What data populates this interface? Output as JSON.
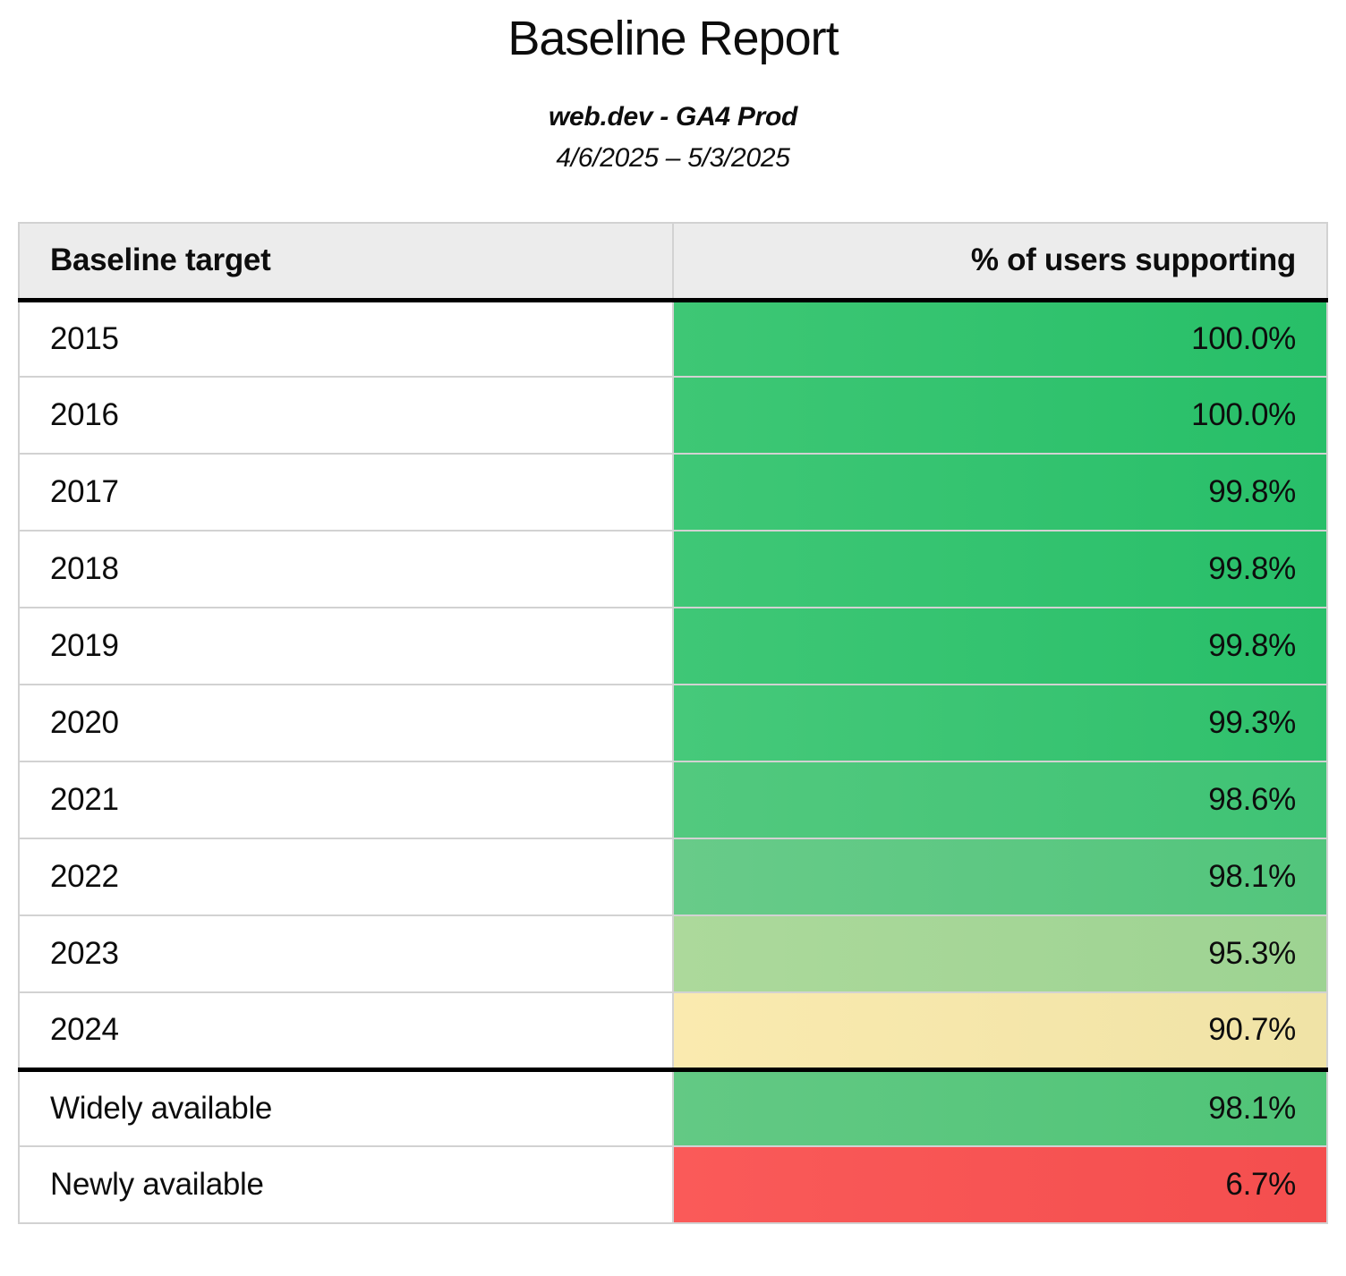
{
  "header": {
    "title": "Baseline Report",
    "subtitle": "web.dev - GA4 Prod",
    "date_range": "4/6/2025 – 5/3/2025"
  },
  "table": {
    "columns": [
      "Baseline target",
      "% of users supporting"
    ],
    "rows": [
      {
        "label": "2015",
        "value": "100.0%",
        "color_left": "#3ec775",
        "color_right": "#27bf68",
        "section_start": false
      },
      {
        "label": "2016",
        "value": "100.0%",
        "color_left": "#3ec775",
        "color_right": "#27bf68",
        "section_start": false
      },
      {
        "label": "2017",
        "value": "99.8%",
        "color_left": "#3fc776",
        "color_right": "#28bf69",
        "section_start": false
      },
      {
        "label": "2018",
        "value": "99.8%",
        "color_left": "#3fc776",
        "color_right": "#28bf69",
        "section_start": false
      },
      {
        "label": "2019",
        "value": "99.8%",
        "color_left": "#3fc776",
        "color_right": "#28bf69",
        "section_start": false
      },
      {
        "label": "2020",
        "value": "99.3%",
        "color_left": "#46c97a",
        "color_right": "#2fc06c",
        "section_start": false
      },
      {
        "label": "2021",
        "value": "98.6%",
        "color_left": "#52c97e",
        "color_right": "#3fc375",
        "section_start": false
      },
      {
        "label": "2022",
        "value": "98.1%",
        "color_left": "#68cb89",
        "color_right": "#52c57c",
        "section_start": false
      },
      {
        "label": "2023",
        "value": "95.3%",
        "color_left": "#acd99b",
        "color_right": "#9dd392",
        "section_start": false
      },
      {
        "label": "2024",
        "value": "90.7%",
        "color_left": "#faeaaf",
        "color_right": "#f0e3a6",
        "section_start": false
      },
      {
        "label": "Widely available",
        "value": "98.1%",
        "color_left": "#63c984",
        "color_right": "#4fc477",
        "section_start": true
      },
      {
        "label": "Newly available",
        "value": "6.7%",
        "color_left": "#fa5a59",
        "color_right": "#f44e4e",
        "section_start": false
      }
    ]
  },
  "chart_data": {
    "type": "table",
    "title": "Baseline Report",
    "subtitle": "web.dev - GA4 Prod",
    "date_range": "4/6/2025 – 5/3/2025",
    "columns": [
      "Baseline target",
      "% of users supporting"
    ],
    "categories": [
      "2015",
      "2016",
      "2017",
      "2018",
      "2019",
      "2020",
      "2021",
      "2022",
      "2023",
      "2024",
      "Widely available",
      "Newly available"
    ],
    "values": [
      100.0,
      100.0,
      99.8,
      99.8,
      99.8,
      99.3,
      98.6,
      98.1,
      95.3,
      90.7,
      98.1,
      6.7
    ],
    "value_unit": "%",
    "layout_hints": {
      "value_column_color_scale": "red (low) → yellow (~90) → light green (~95) → green (high)",
      "section_break_after": "2024",
      "header_background": "#ececec",
      "grid": "light gray cell borders, thick black rule under header and before availability section"
    }
  }
}
